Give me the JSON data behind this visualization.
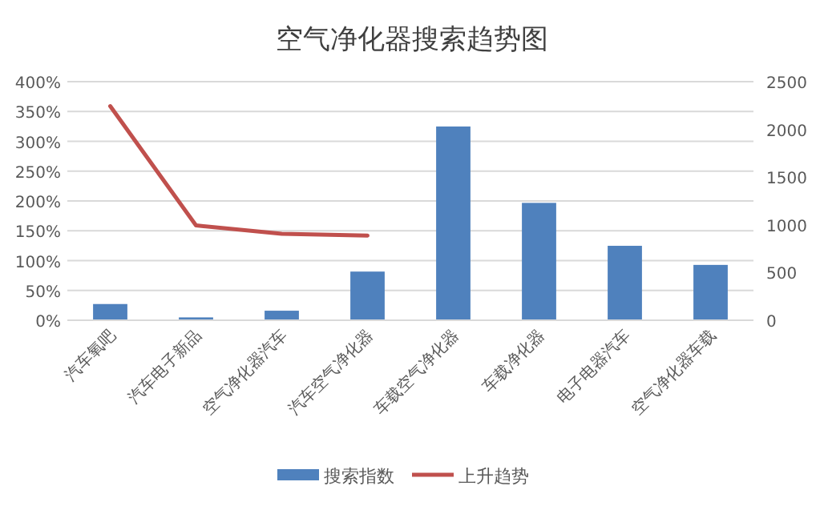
{
  "chart_data": {
    "type": "bar",
    "title": "空气净化器搜索趋势图",
    "categories": [
      "汽车氧吧",
      "汽车电子新品",
      "空气净化器汽车",
      "汽车空气净化器",
      "车载空气净化器",
      "车载净化器",
      "电子电器汽车",
      "空气净化器车载"
    ],
    "series": [
      {
        "name": "搜索指数",
        "axis": "y2",
        "color": "#4f81bd",
        "values": [
          170,
          30,
          100,
          510,
          2030,
          1230,
          780,
          580
        ]
      },
      {
        "name": "上升趋势",
        "type": "line",
        "color": "#c0504d",
        "values": [
          359,
          159,
          145,
          142,
          null,
          null,
          null,
          null
        ]
      }
    ],
    "ylim": [
      0,
      400
    ],
    "yticks": [
      {
        "value": 0,
        "label": "0%"
      },
      {
        "value": 50,
        "label": "50%"
      },
      {
        "value": 100,
        "label": "100%"
      },
      {
        "value": 150,
        "label": "150%"
      },
      {
        "value": 200,
        "label": "200%"
      },
      {
        "value": 250,
        "label": "250%"
      },
      {
        "value": 300,
        "label": "300%"
      },
      {
        "value": 350,
        "label": "350%"
      },
      {
        "value": 400,
        "label": "400%"
      }
    ],
    "y2lim": [
      0,
      2500
    ],
    "y2ticks": [
      0,
      500,
      1000,
      1500,
      2000,
      2500
    ],
    "grid": "y",
    "legend": "bottom"
  }
}
